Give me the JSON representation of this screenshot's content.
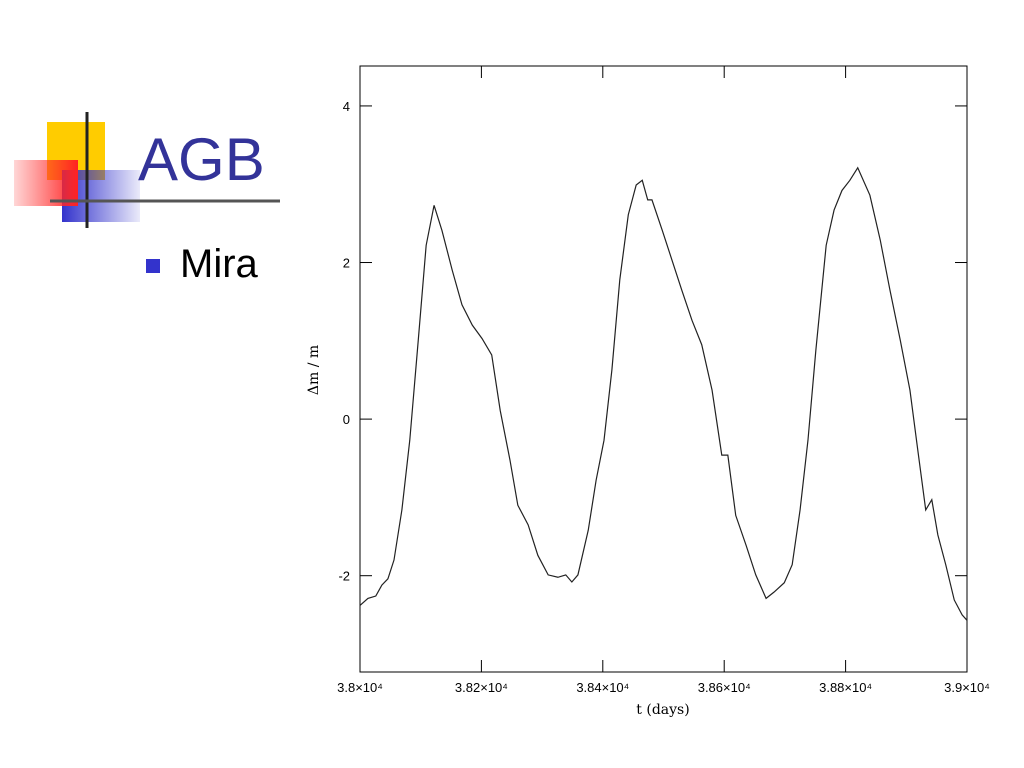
{
  "slide": {
    "title": "AGB",
    "bullets": [
      "Mira"
    ]
  },
  "chart_data": {
    "type": "line",
    "xlabel": "t (days)",
    "ylabel": "Δm / m",
    "x": [
      38000,
      38013,
      38026,
      38036,
      38046,
      38056,
      38069,
      38082,
      38096,
      38109,
      38122,
      38135,
      38152,
      38168,
      38185,
      38201,
      38217,
      38231,
      38247,
      38260,
      38277,
      38293,
      38310,
      38326,
      38339,
      38349,
      38359,
      38376,
      38389,
      38402,
      38415,
      38428,
      38442,
      38455,
      38465,
      38474,
      38481,
      38498,
      38514,
      38530,
      38547,
      38563,
      38580,
      38596,
      38606,
      38619,
      38636,
      38652,
      38669,
      38682,
      38699,
      38712,
      38725,
      38738,
      38751,
      38768,
      38781,
      38794,
      38807,
      38820,
      38840,
      38857,
      38873,
      38890,
      38906,
      38919,
      38932,
      38942,
      38952,
      38965,
      38979,
      38992,
      39000
    ],
    "values": [
      -2.38,
      -2.29,
      -2.26,
      -2.12,
      -2.04,
      -1.8,
      -1.16,
      -0.27,
      1.01,
      2.22,
      2.73,
      2.41,
      1.9,
      1.46,
      1.2,
      1.03,
      0.82,
      0.11,
      -0.52,
      -1.1,
      -1.35,
      -1.74,
      -1.99,
      -2.02,
      -1.99,
      -2.08,
      -1.99,
      -1.42,
      -0.78,
      -0.27,
      0.63,
      1.78,
      2.61,
      2.99,
      3.05,
      2.8,
      2.8,
      2.41,
      2.03,
      1.65,
      1.26,
      0.95,
      0.37,
      -0.46,
      -0.46,
      -1.23,
      -1.61,
      -1.99,
      -2.29,
      -2.21,
      -2.09,
      -1.86,
      -1.16,
      -0.27,
      0.88,
      2.22,
      2.67,
      2.92,
      3.05,
      3.21,
      2.86,
      2.29,
      1.65,
      1.01,
      0.37,
      -0.4,
      -1.16,
      -1.03,
      -1.48,
      -1.86,
      -2.31,
      -2.5,
      -2.57
    ],
    "color": "#222222",
    "xlim": [
      38000,
      39000
    ],
    "xticks": [
      {
        "value": 38000,
        "label": "3.8×10⁴"
      },
      {
        "value": 38200,
        "label": "3.82×10⁴"
      },
      {
        "value": 38400,
        "label": "3.84×10⁴"
      },
      {
        "value": 38600,
        "label": "3.86×10⁴"
      },
      {
        "value": 38800,
        "label": "3.88×10⁴"
      },
      {
        "value": 39000,
        "label": "3.9×10⁴"
      }
    ],
    "ylim": [
      -3.23,
      4.51
    ],
    "yticks": [
      -2,
      0,
      2,
      4
    ]
  }
}
